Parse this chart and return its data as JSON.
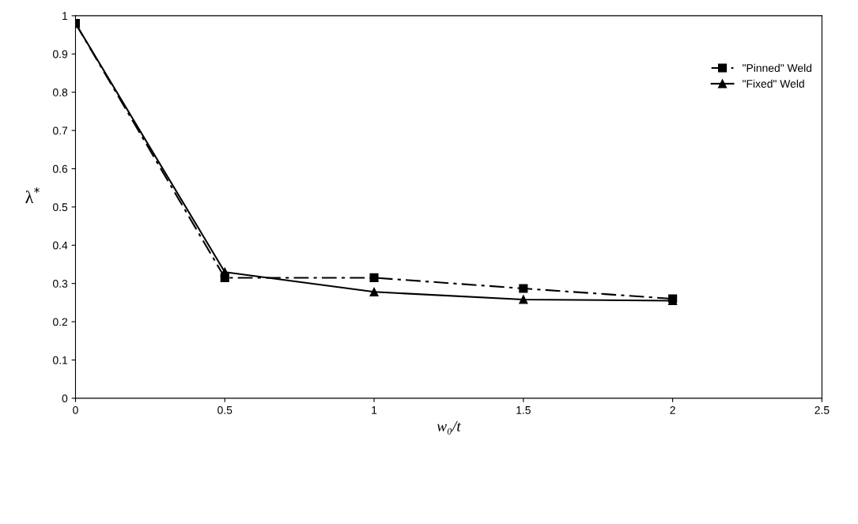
{
  "chart_data": {
    "type": "line",
    "xlabel": "w₀/t",
    "ylabel": "λ$^{*}$",
    "x": [
      0,
      0.5,
      1,
      1.5,
      2
    ],
    "series": [
      {
        "name": "\"Pinned\" Weld",
        "color": "#000000",
        "marker": "square",
        "line_style": "dashed",
        "values": [
          0.98,
          0.315,
          0.315,
          0.287,
          0.26
        ]
      },
      {
        "name": "\"Fixed\" Weld",
        "color": "#000000",
        "marker": "triangle",
        "line_style": "solid",
        "values": [
          0.98,
          0.33,
          0.278,
          0.258,
          0.255
        ]
      }
    ],
    "xlim": [
      0,
      2.5
    ],
    "xticks": [
      0,
      0.5,
      1,
      1.5,
      2,
      2.5
    ],
    "ylim": [
      0,
      1
    ],
    "yticks": [
      0,
      0.1,
      0.2,
      0.3,
      0.4,
      0.5,
      0.6,
      0.7,
      0.8,
      0.9,
      1
    ],
    "grid": false,
    "legend": "top right"
  }
}
